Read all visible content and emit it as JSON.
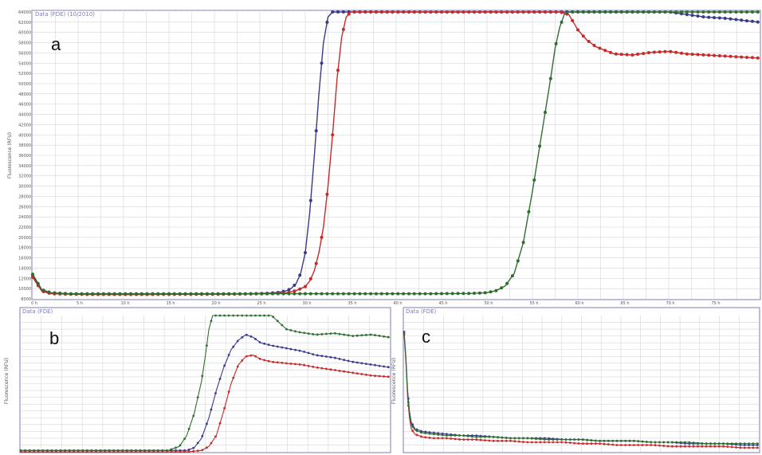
{
  "colors": {
    "blue": "#3a3a8c",
    "red": "#c62a2a",
    "green": "#2f6e2f",
    "grid": "#d6d6dc",
    "frame": "#7c7cb4",
    "panel_bg": "#ffffff"
  },
  "chart_data": [
    {
      "type": "line",
      "panel_label": "a",
      "header_text": "Data (FDE) (10/2010)",
      "ylabel": "Fluorescence (RFU)",
      "xlabel": "",
      "ylim": [
        8000,
        64000
      ],
      "xlim": [
        0,
        80
      ],
      "yticks": [
        "8000",
        "10000",
        "12000",
        "14000",
        "16000",
        "18000",
        "20000",
        "22000",
        "24000",
        "26000",
        "28000",
        "30000",
        "32000",
        "34000",
        "36000",
        "38000",
        "40000",
        "42000",
        "44000",
        "46000",
        "48000",
        "50000",
        "52000",
        "54000",
        "56000",
        "58000",
        "60000",
        "62000",
        "64000"
      ],
      "xticks": [
        "0 h",
        "5 h",
        "10 h",
        "15 h",
        "20 h",
        "25 h",
        "30 h",
        "35 h",
        "40 h",
        "45 h",
        "50 h",
        "55 h",
        "60 h",
        "65 h",
        "70 h",
        "75 h"
      ],
      "grid": true,
      "series": [
        {
          "color": "blue",
          "x": [
            0,
            1,
            2,
            4,
            6,
            8,
            10,
            12,
            14,
            16,
            18,
            20,
            22,
            24,
            26,
            27,
            28,
            28.5,
            29,
            29.5,
            30,
            30.5,
            31,
            31.5,
            32,
            32.5,
            33,
            33.5,
            34,
            36,
            40,
            45,
            50,
            55,
            60,
            65,
            70,
            72,
            74,
            76,
            78,
            80
          ],
          "y": [
            12600,
            9600,
            9100,
            8950,
            8900,
            8880,
            8870,
            8870,
            8880,
            8900,
            8900,
            8920,
            8950,
            9000,
            9100,
            9250,
            9600,
            10100,
            11000,
            13000,
            17000,
            25000,
            36000,
            48000,
            58000,
            63000,
            64000,
            64000,
            64000,
            64000,
            64000,
            64000,
            64000,
            64000,
            64000,
            64000,
            64000,
            63500,
            63000,
            62800,
            62400,
            62000
          ]
        },
        {
          "color": "red",
          "x": [
            0,
            1,
            2,
            4,
            6,
            8,
            10,
            12,
            14,
            16,
            18,
            20,
            22,
            24,
            26,
            28,
            29,
            30,
            30.5,
            31,
            31.5,
            32,
            32.5,
            33,
            33.5,
            34,
            34.5,
            35,
            36,
            40,
            45,
            50,
            55,
            58,
            59,
            60,
            61,
            62,
            64,
            66,
            68,
            70,
            72,
            74,
            76,
            78,
            80
          ],
          "y": [
            12200,
            9500,
            9000,
            8900,
            8850,
            8850,
            8850,
            8860,
            8870,
            8880,
            8890,
            8900,
            8920,
            8950,
            9000,
            9200,
            9600,
            10400,
            11500,
            13500,
            17000,
            22000,
            30000,
            40000,
            51000,
            59000,
            63000,
            64000,
            64000,
            64000,
            64000,
            64000,
            64000,
            64000,
            63500,
            60500,
            58500,
            57200,
            55800,
            55600,
            56100,
            56300,
            55800,
            55600,
            55400,
            55200,
            55000
          ]
        },
        {
          "color": "green",
          "x": [
            0,
            1,
            2,
            4,
            8,
            12,
            16,
            20,
            24,
            28,
            32,
            36,
            40,
            44,
            48,
            50,
            51,
            52,
            53,
            54,
            55,
            56,
            57,
            57.5,
            58,
            58.5,
            59,
            60,
            65,
            70,
            75,
            80
          ],
          "y": [
            12800,
            9800,
            9200,
            9000,
            9000,
            9000,
            9000,
            9000,
            9000,
            9000,
            9000,
            9000,
            9000,
            9000,
            9050,
            9200,
            9600,
            10500,
            13000,
            19000,
            29000,
            40000,
            51000,
            57000,
            61000,
            63500,
            64000,
            64000,
            64000,
            64000,
            64000,
            64000
          ]
        }
      ]
    },
    {
      "type": "line",
      "panel_label": "b",
      "header_text": "Data (FDE)",
      "ylabel": "Fluorescence (RFU)",
      "xlabel": "",
      "ylim": [
        0,
        100
      ],
      "xlim": [
        0,
        100
      ],
      "grid": true,
      "series": [
        {
          "color": "blue",
          "x": [
            0,
            10,
            20,
            30,
            40,
            45,
            47,
            49,
            51,
            53,
            55,
            57,
            59,
            61,
            63,
            65,
            68,
            72,
            76,
            80,
            85,
            90,
            95,
            100
          ],
          "y": [
            1,
            1,
            1,
            1,
            1,
            1,
            3,
            10,
            25,
            45,
            62,
            75,
            82,
            86,
            84,
            80,
            78,
            76,
            74,
            71,
            69,
            66,
            64,
            62
          ]
        },
        {
          "color": "red",
          "x": [
            0,
            10,
            20,
            30,
            40,
            45,
            49,
            51,
            53,
            55,
            57,
            59,
            61,
            63,
            65,
            68,
            72,
            76,
            80,
            85,
            90,
            95,
            100
          ],
          "y": [
            0,
            0,
            0,
            0,
            0,
            0,
            1,
            4,
            12,
            30,
            50,
            64,
            70,
            71,
            68,
            66,
            65,
            64,
            62,
            60,
            58,
            56,
            55
          ]
        },
        {
          "color": "green",
          "x": [
            0,
            10,
            20,
            30,
            40,
            43,
            45,
            47,
            49,
            50,
            51,
            52,
            53,
            56,
            60,
            65,
            68,
            70,
            72,
            75,
            80,
            85,
            90,
            95,
            100
          ],
          "y": [
            1,
            1,
            1,
            1,
            1,
            4,
            12,
            28,
            52,
            70,
            90,
            100,
            100,
            100,
            100,
            100,
            100,
            95,
            90,
            88,
            86,
            87,
            85,
            86,
            84
          ]
        }
      ]
    },
    {
      "type": "line",
      "panel_label": "c",
      "header_text": "Data (FDE)",
      "ylabel": "Fluorescence (RFU)",
      "xlabel": "",
      "ylim": [
        0,
        100
      ],
      "xlim": [
        0,
        100
      ],
      "grid": true,
      "series": [
        {
          "color": "blue",
          "x": [
            0,
            0.5,
            1,
            1.5,
            2,
            3,
            5,
            8,
            12,
            16,
            20,
            25,
            30,
            35,
            40,
            45,
            50,
            55,
            60,
            65,
            70,
            75,
            80,
            85,
            90,
            95,
            100
          ],
          "y": [
            88,
            70,
            45,
            30,
            22,
            17,
            15,
            14,
            13,
            12,
            12,
            11,
            10,
            10,
            10,
            9,
            9,
            8,
            8,
            8,
            7,
            7,
            6,
            6,
            6,
            5,
            5
          ]
        },
        {
          "color": "red",
          "x": [
            0,
            0.5,
            1,
            1.5,
            2,
            3,
            5,
            8,
            12,
            16,
            20,
            25,
            30,
            35,
            40,
            45,
            50,
            55,
            60,
            65,
            70,
            75,
            80,
            85,
            90,
            95,
            100
          ],
          "y": [
            86,
            66,
            40,
            25,
            17,
            13,
            11,
            10,
            10,
            9,
            9,
            8,
            8,
            7,
            7,
            7,
            6,
            6,
            5,
            5,
            5,
            4,
            4,
            4,
            4,
            3,
            3
          ]
        },
        {
          "color": "green",
          "x": [
            0,
            0.5,
            1,
            1.5,
            2,
            3,
            5,
            8,
            12,
            16,
            20,
            25,
            30,
            35,
            40,
            45,
            50,
            55,
            60,
            65,
            70,
            75,
            80,
            85,
            90,
            95,
            100
          ],
          "y": [
            87,
            68,
            42,
            28,
            20,
            16,
            14,
            13,
            12,
            12,
            11,
            11,
            10,
            10,
            9,
            9,
            9,
            8,
            8,
            8,
            7,
            7,
            7,
            6,
            6,
            6,
            6
          ]
        }
      ]
    }
  ]
}
